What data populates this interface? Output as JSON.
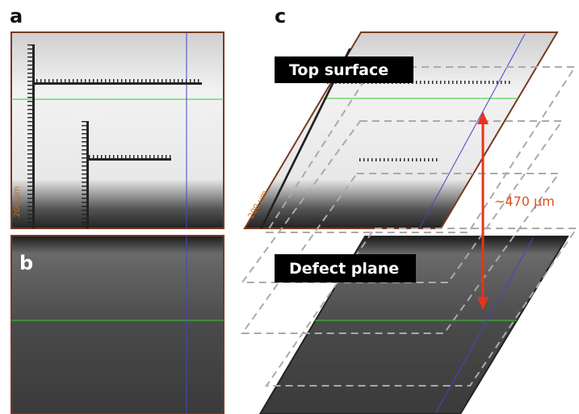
{
  "panels": {
    "a": {
      "label": "a"
    },
    "b": {
      "label": "b"
    },
    "c": {
      "label": "c",
      "top_label": "Top surface",
      "defect_label": "Defect plane",
      "distance": "~470 µm"
    }
  },
  "scale_label": "200 µm"
}
